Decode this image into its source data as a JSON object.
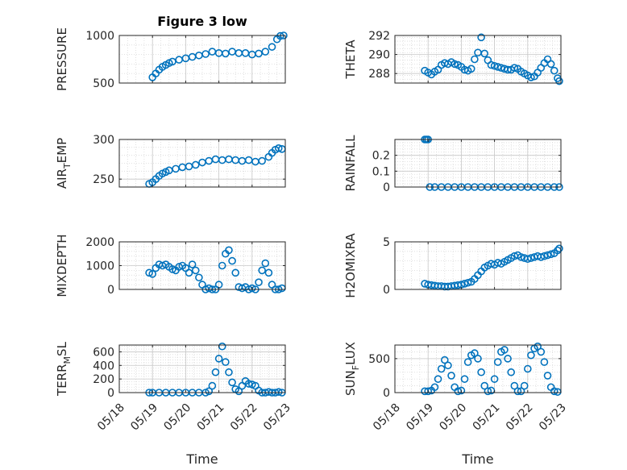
{
  "figure": {
    "title": "Figure 3 low",
    "xlabel": "Time",
    "x_tick_labels": [
      "05/18",
      "05/19",
      "05/20",
      "05/21",
      "05/22",
      "05/23"
    ]
  },
  "chart_data": [
    {
      "type": "scatter",
      "ylabel_parts": [
        "PRESSURE"
      ],
      "ylim": [
        500,
        1000
      ],
      "yticks": [
        500,
        1000
      ],
      "ytick_labels": [
        "500",
        "1000"
      ],
      "xlim": [
        0,
        5
      ],
      "grid": true,
      "marker": "circle",
      "color": "#0072BD",
      "series": [
        {
          "x": [
            1.0,
            1.1,
            1.2,
            1.3,
            1.4,
            1.5,
            1.6,
            1.8,
            2.0,
            2.2,
            2.4,
            2.6,
            2.8,
            3.0,
            3.2,
            3.4,
            3.6,
            3.8,
            4.0,
            4.2,
            4.4,
            4.6,
            4.75,
            4.85,
            4.95
          ],
          "y": [
            560,
            600,
            640,
            670,
            690,
            710,
            725,
            745,
            760,
            775,
            790,
            805,
            830,
            815,
            810,
            830,
            815,
            815,
            800,
            810,
            830,
            880,
            960,
            995,
            1000
          ]
        }
      ]
    },
    {
      "type": "scatter",
      "ylabel_parts": [
        "THETA"
      ],
      "ylim": [
        287,
        292
      ],
      "yticks": [
        288,
        290,
        292
      ],
      "ytick_labels": [
        "288",
        "290",
        "292"
      ],
      "xlim": [
        0,
        5
      ],
      "grid": true,
      "marker": "circle",
      "color": "#0072BD",
      "series": [
        {
          "x": [
            0.9,
            1.0,
            1.1,
            1.2,
            1.3,
            1.4,
            1.5,
            1.6,
            1.7,
            1.8,
            1.9,
            2.0,
            2.1,
            2.2,
            2.3,
            2.4,
            2.5,
            2.6,
            2.7,
            2.8,
            2.9,
            3.0,
            3.1,
            3.2,
            3.3,
            3.4,
            3.5,
            3.6,
            3.7,
            3.8,
            3.9,
            4.0,
            4.1,
            4.2,
            4.3,
            4.4,
            4.5,
            4.6,
            4.7,
            4.8,
            4.9,
            4.95
          ],
          "y": [
            288.3,
            288.1,
            287.9,
            288.2,
            288.4,
            288.9,
            289.1,
            289.0,
            289.2,
            289.0,
            288.9,
            288.7,
            288.4,
            288.3,
            288.5,
            289.5,
            290.2,
            291.8,
            290.1,
            289.4,
            288.9,
            288.8,
            288.7,
            288.6,
            288.5,
            288.4,
            288.4,
            288.6,
            288.5,
            288.2,
            288.0,
            287.8,
            287.6,
            287.7,
            288.1,
            288.6,
            289.1,
            289.5,
            289.0,
            288.3,
            287.5,
            287.2
          ]
        }
      ]
    },
    {
      "type": "scatter",
      "ylabel_parts": [
        "AIR",
        "T",
        "EMP"
      ],
      "ylim": [
        240,
        300
      ],
      "yticks": [
        250,
        300
      ],
      "ytick_labels": [
        "250",
        "300"
      ],
      "xlim": [
        0,
        5
      ],
      "grid": true,
      "marker": "circle",
      "color": "#0072BD",
      "series": [
        {
          "x": [
            0.9,
            1.0,
            1.1,
            1.2,
            1.3,
            1.4,
            1.5,
            1.7,
            1.9,
            2.1,
            2.3,
            2.5,
            2.7,
            2.9,
            3.1,
            3.3,
            3.5,
            3.7,
            3.9,
            4.1,
            4.3,
            4.5,
            4.6,
            4.7,
            4.8,
            4.9
          ],
          "y": [
            244,
            246,
            250,
            254,
            257,
            259,
            261,
            263,
            265,
            266,
            268,
            271,
            273,
            275,
            274,
            275,
            274,
            273,
            274,
            272,
            273,
            278,
            283,
            287,
            289,
            288
          ]
        }
      ]
    },
    {
      "type": "scatter",
      "ylabel_parts": [
        "RAINFALL"
      ],
      "ylim": [
        0,
        0.3
      ],
      "yticks": [
        0,
        0.1,
        0.2
      ],
      "ytick_labels": [
        "0",
        "0.1",
        "0.2"
      ],
      "xlim": [
        0,
        5
      ],
      "grid": true,
      "marker": "circle",
      "color": "#0072BD",
      "series": [
        {
          "x": [
            0.9,
            0.95,
            1.0,
            1.05,
            1.2,
            1.4,
            1.6,
            1.8,
            2.0,
            2.2,
            2.4,
            2.6,
            2.8,
            3.0,
            3.2,
            3.4,
            3.6,
            3.8,
            4.0,
            4.2,
            4.4,
            4.6,
            4.8,
            4.95
          ],
          "y": [
            0.3,
            0.3,
            0.3,
            0,
            0,
            0,
            0,
            0,
            0,
            0,
            0,
            0,
            0,
            0,
            0,
            0,
            0,
            0,
            0,
            0,
            0,
            0,
            0,
            0
          ]
        }
      ]
    },
    {
      "type": "scatter",
      "ylabel_parts": [
        "MIXDEPTH"
      ],
      "ylim": [
        0,
        2000
      ],
      "yticks": [
        0,
        1000,
        2000
      ],
      "ytick_labels": [
        "0",
        "1000",
        "2000"
      ],
      "xlim": [
        0,
        5
      ],
      "grid": true,
      "marker": "circle",
      "color": "#0072BD",
      "series": [
        {
          "x": [
            0.9,
            1.0,
            1.1,
            1.2,
            1.3,
            1.4,
            1.5,
            1.6,
            1.7,
            1.8,
            1.9,
            2.0,
            2.1,
            2.2,
            2.3,
            2.4,
            2.5,
            2.6,
            2.7,
            2.8,
            2.9,
            3.0,
            3.1,
            3.2,
            3.3,
            3.4,
            3.5,
            3.6,
            3.7,
            3.8,
            3.9,
            4.0,
            4.1,
            4.2,
            4.3,
            4.4,
            4.5,
            4.6,
            4.7,
            4.8,
            4.9
          ],
          "y": [
            700,
            650,
            900,
            1050,
            1000,
            1050,
            950,
            850,
            800,
            950,
            1000,
            900,
            700,
            1050,
            800,
            500,
            200,
            0,
            50,
            0,
            0,
            200,
            1000,
            1500,
            1650,
            1200,
            700,
            100,
            50,
            100,
            0,
            50,
            0,
            300,
            800,
            1100,
            700,
            200,
            0,
            0,
            50
          ]
        }
      ]
    },
    {
      "type": "scatter",
      "ylabel_parts": [
        "H2OMIXRA"
      ],
      "ylim": [
        0,
        5
      ],
      "yticks": [
        0,
        5
      ],
      "ytick_labels": [
        "0",
        "5"
      ],
      "xlim": [
        0,
        5
      ],
      "grid": true,
      "marker": "circle",
      "color": "#0072BD",
      "series": [
        {
          "x": [
            0.9,
            1.0,
            1.1,
            1.2,
            1.3,
            1.4,
            1.5,
            1.6,
            1.7,
            1.8,
            1.9,
            2.0,
            2.1,
            2.2,
            2.3,
            2.4,
            2.5,
            2.6,
            2.7,
            2.8,
            2.9,
            3.0,
            3.1,
            3.2,
            3.3,
            3.4,
            3.5,
            3.6,
            3.7,
            3.8,
            3.9,
            4.0,
            4.1,
            4.2,
            4.3,
            4.4,
            4.5,
            4.6,
            4.7,
            4.8,
            4.9,
            4.95
          ],
          "y": [
            0.6,
            0.5,
            0.45,
            0.4,
            0.35,
            0.35,
            0.3,
            0.3,
            0.35,
            0.4,
            0.45,
            0.5,
            0.6,
            0.7,
            0.8,
            1.1,
            1.5,
            1.9,
            2.3,
            2.5,
            2.7,
            2.6,
            2.8,
            2.7,
            2.9,
            3.1,
            3.3,
            3.5,
            3.6,
            3.4,
            3.3,
            3.2,
            3.3,
            3.4,
            3.5,
            3.4,
            3.5,
            3.6,
            3.7,
            3.8,
            4.1,
            4.3
          ]
        }
      ]
    },
    {
      "type": "scatter",
      "ylabel_parts": [
        "TERR",
        "M",
        "SL"
      ],
      "ylim": [
        0,
        700
      ],
      "yticks": [
        0,
        200,
        400,
        600
      ],
      "ytick_labels": [
        "0",
        "200",
        "400",
        "600"
      ],
      "xlim": [
        0,
        5
      ],
      "grid": true,
      "marker": "circle",
      "color": "#0072BD",
      "series": [
        {
          "x": [
            0.9,
            1.0,
            1.2,
            1.4,
            1.6,
            1.8,
            2.0,
            2.2,
            2.4,
            2.6,
            2.7,
            2.8,
            2.9,
            3.0,
            3.1,
            3.2,
            3.3,
            3.4,
            3.5,
            3.6,
            3.7,
            3.8,
            3.9,
            4.0,
            4.1,
            4.2,
            4.3,
            4.4,
            4.5,
            4.6,
            4.7,
            4.8,
            4.9
          ],
          "y": [
            0,
            0,
            0,
            0,
            0,
            0,
            0,
            0,
            0,
            0,
            20,
            100,
            300,
            500,
            680,
            450,
            300,
            150,
            50,
            20,
            100,
            170,
            130,
            120,
            100,
            30,
            0,
            0,
            10,
            0,
            0,
            10,
            0
          ]
        }
      ]
    },
    {
      "type": "scatter",
      "ylabel_parts": [
        "SUN",
        "F",
        "LUX"
      ],
      "ylim": [
        0,
        700
      ],
      "yticks": [
        0,
        500
      ],
      "ytick_labels": [
        "0",
        "500"
      ],
      "xlim": [
        0,
        5
      ],
      "grid": true,
      "marker": "circle",
      "color": "#0072BD",
      "series": [
        {
          "x": [
            0.9,
            1.0,
            1.1,
            1.2,
            1.3,
            1.4,
            1.5,
            1.6,
            1.7,
            1.8,
            1.9,
            2.0,
            2.1,
            2.2,
            2.3,
            2.4,
            2.5,
            2.6,
            2.7,
            2.8,
            2.9,
            3.0,
            3.1,
            3.2,
            3.3,
            3.4,
            3.5,
            3.6,
            3.7,
            3.8,
            3.9,
            4.0,
            4.1,
            4.2,
            4.3,
            4.4,
            4.5,
            4.6,
            4.7,
            4.8,
            4.9
          ],
          "y": [
            20,
            20,
            30,
            80,
            200,
            350,
            480,
            400,
            250,
            80,
            20,
            30,
            200,
            450,
            550,
            580,
            500,
            300,
            100,
            20,
            30,
            200,
            450,
            600,
            630,
            500,
            300,
            100,
            20,
            20,
            100,
            350,
            550,
            650,
            680,
            600,
            450,
            250,
            80,
            20,
            10
          ]
        }
      ]
    }
  ]
}
